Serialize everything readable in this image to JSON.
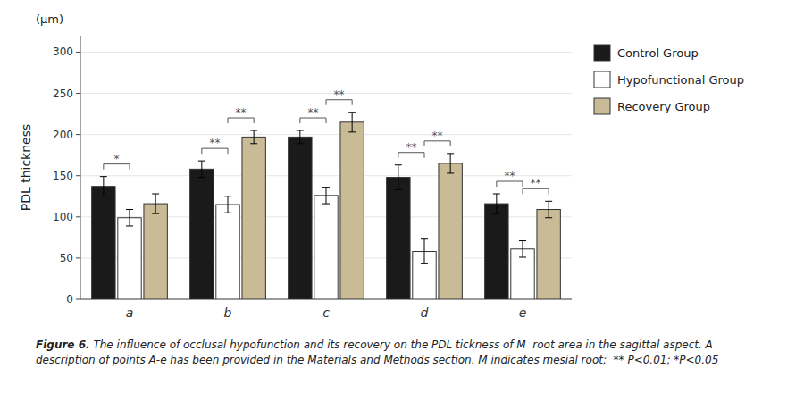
{
  "chart_data": {
    "type": "bar",
    "categories": [
      "a",
      "b",
      "c",
      "d",
      "e"
    ],
    "series": [
      {
        "name": "Control Group",
        "color": "#1a1a1a",
        "values": [
          137,
          158,
          197,
          148,
          116
        ],
        "errors": [
          12,
          10,
          8,
          15,
          12
        ]
      },
      {
        "name": "Hypofunctional Group",
        "color": "#ffffff",
        "values": [
          99,
          115,
          126,
          58,
          61
        ],
        "errors": [
          10,
          10,
          10,
          15,
          10
        ]
      },
      {
        "name": "Recovery Group",
        "color": "#c8bb96",
        "values": [
          116,
          197,
          215,
          165,
          109
        ],
        "errors": [
          12,
          8,
          12,
          12,
          10
        ]
      }
    ],
    "ylabel": "PDL thickness",
    "ylabel_unit": "(μm)",
    "ylim": [
      0,
      320
    ],
    "yticks": [
      0,
      50,
      100,
      150,
      200,
      250,
      300
    ],
    "legend": "right",
    "annotations": [
      {
        "text": "*",
        "category": "a",
        "series": [
          "Control Group",
          "Hypofunctional Group"
        ]
      },
      {
        "text": "**",
        "category": "b",
        "series": [
          "Control Group",
          "Hypofunctional Group"
        ]
      },
      {
        "text": "**",
        "category": "b",
        "series": [
          "Hypofunctional Group",
          "Recovery Group"
        ]
      },
      {
        "text": "**",
        "category": "c",
        "series": [
          "Control Group",
          "Hypofunctional Group"
        ]
      },
      {
        "text": "**",
        "category": "c",
        "series": [
          "Hypofunctional Group",
          "Recovery Group"
        ]
      },
      {
        "text": "**",
        "category": "d",
        "series": [
          "Control Group",
          "Hypofunctional Group"
        ]
      },
      {
        "text": "**",
        "category": "d",
        "series": [
          "Hypofunctional Group",
          "Recovery Group"
        ]
      },
      {
        "text": "**",
        "category": "e",
        "series": [
          "Control Group",
          "Hypofunctional Group"
        ]
      },
      {
        "text": "**",
        "category": "e",
        "series": [
          "Hypofunctional Group",
          "Recovery Group"
        ]
      }
    ],
    "caption_label": "Figure 6.",
    "caption": "The influence of occlusal hypofunction and its recovery on the PDL tickness of M  root area in the sagittal aspect. A description of points A-e has been provided in the Materials and Methods section. M indicates mesial root;  ** P<0.01; *P<0.05"
  }
}
